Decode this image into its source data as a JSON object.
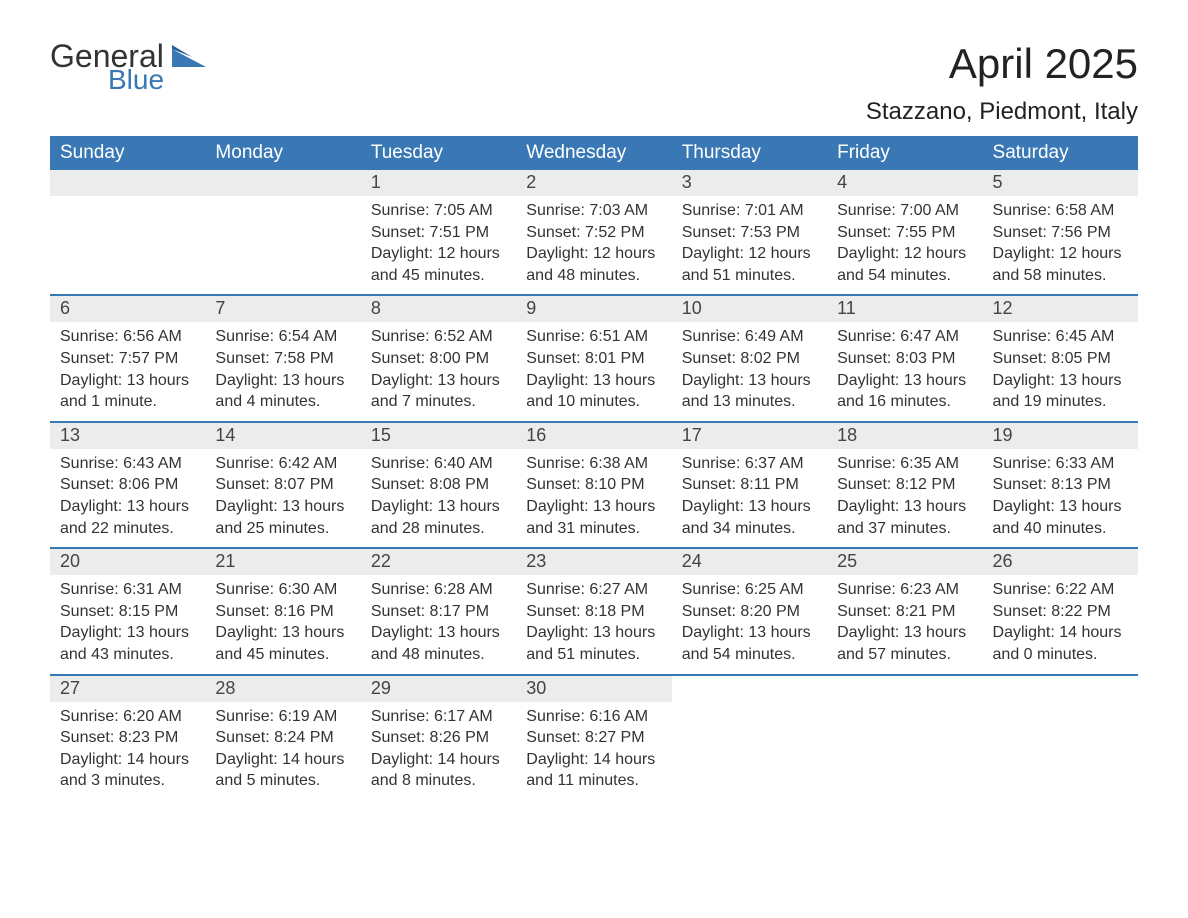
{
  "logo": {
    "word1": "General",
    "word2": "Blue"
  },
  "title": "April 2025",
  "location": "Stazzano, Piedmont, Italy",
  "colors": {
    "brand_blue": "#3a78b5",
    "header_bg": "#3a78b5",
    "header_text": "#ffffff",
    "daynum_bg": "#ececec",
    "text": "#333333",
    "background": "#ffffff"
  },
  "day_names": [
    "Sunday",
    "Monday",
    "Tuesday",
    "Wednesday",
    "Thursday",
    "Friday",
    "Saturday"
  ],
  "weeks": [
    [
      {
        "n": "",
        "sunrise": "",
        "sunset": "",
        "daylight1": "",
        "daylight2": ""
      },
      {
        "n": "",
        "sunrise": "",
        "sunset": "",
        "daylight1": "",
        "daylight2": ""
      },
      {
        "n": "1",
        "sunrise": "Sunrise: 7:05 AM",
        "sunset": "Sunset: 7:51 PM",
        "daylight1": "Daylight: 12 hours",
        "daylight2": "and 45 minutes."
      },
      {
        "n": "2",
        "sunrise": "Sunrise: 7:03 AM",
        "sunset": "Sunset: 7:52 PM",
        "daylight1": "Daylight: 12 hours",
        "daylight2": "and 48 minutes."
      },
      {
        "n": "3",
        "sunrise": "Sunrise: 7:01 AM",
        "sunset": "Sunset: 7:53 PM",
        "daylight1": "Daylight: 12 hours",
        "daylight2": "and 51 minutes."
      },
      {
        "n": "4",
        "sunrise": "Sunrise: 7:00 AM",
        "sunset": "Sunset: 7:55 PM",
        "daylight1": "Daylight: 12 hours",
        "daylight2": "and 54 minutes."
      },
      {
        "n": "5",
        "sunrise": "Sunrise: 6:58 AM",
        "sunset": "Sunset: 7:56 PM",
        "daylight1": "Daylight: 12 hours",
        "daylight2": "and 58 minutes."
      }
    ],
    [
      {
        "n": "6",
        "sunrise": "Sunrise: 6:56 AM",
        "sunset": "Sunset: 7:57 PM",
        "daylight1": "Daylight: 13 hours",
        "daylight2": "and 1 minute."
      },
      {
        "n": "7",
        "sunrise": "Sunrise: 6:54 AM",
        "sunset": "Sunset: 7:58 PM",
        "daylight1": "Daylight: 13 hours",
        "daylight2": "and 4 minutes."
      },
      {
        "n": "8",
        "sunrise": "Sunrise: 6:52 AM",
        "sunset": "Sunset: 8:00 PM",
        "daylight1": "Daylight: 13 hours",
        "daylight2": "and 7 minutes."
      },
      {
        "n": "9",
        "sunrise": "Sunrise: 6:51 AM",
        "sunset": "Sunset: 8:01 PM",
        "daylight1": "Daylight: 13 hours",
        "daylight2": "and 10 minutes."
      },
      {
        "n": "10",
        "sunrise": "Sunrise: 6:49 AM",
        "sunset": "Sunset: 8:02 PM",
        "daylight1": "Daylight: 13 hours",
        "daylight2": "and 13 minutes."
      },
      {
        "n": "11",
        "sunrise": "Sunrise: 6:47 AM",
        "sunset": "Sunset: 8:03 PM",
        "daylight1": "Daylight: 13 hours",
        "daylight2": "and 16 minutes."
      },
      {
        "n": "12",
        "sunrise": "Sunrise: 6:45 AM",
        "sunset": "Sunset: 8:05 PM",
        "daylight1": "Daylight: 13 hours",
        "daylight2": "and 19 minutes."
      }
    ],
    [
      {
        "n": "13",
        "sunrise": "Sunrise: 6:43 AM",
        "sunset": "Sunset: 8:06 PM",
        "daylight1": "Daylight: 13 hours",
        "daylight2": "and 22 minutes."
      },
      {
        "n": "14",
        "sunrise": "Sunrise: 6:42 AM",
        "sunset": "Sunset: 8:07 PM",
        "daylight1": "Daylight: 13 hours",
        "daylight2": "and 25 minutes."
      },
      {
        "n": "15",
        "sunrise": "Sunrise: 6:40 AM",
        "sunset": "Sunset: 8:08 PM",
        "daylight1": "Daylight: 13 hours",
        "daylight2": "and 28 minutes."
      },
      {
        "n": "16",
        "sunrise": "Sunrise: 6:38 AM",
        "sunset": "Sunset: 8:10 PM",
        "daylight1": "Daylight: 13 hours",
        "daylight2": "and 31 minutes."
      },
      {
        "n": "17",
        "sunrise": "Sunrise: 6:37 AM",
        "sunset": "Sunset: 8:11 PM",
        "daylight1": "Daylight: 13 hours",
        "daylight2": "and 34 minutes."
      },
      {
        "n": "18",
        "sunrise": "Sunrise: 6:35 AM",
        "sunset": "Sunset: 8:12 PM",
        "daylight1": "Daylight: 13 hours",
        "daylight2": "and 37 minutes."
      },
      {
        "n": "19",
        "sunrise": "Sunrise: 6:33 AM",
        "sunset": "Sunset: 8:13 PM",
        "daylight1": "Daylight: 13 hours",
        "daylight2": "and 40 minutes."
      }
    ],
    [
      {
        "n": "20",
        "sunrise": "Sunrise: 6:31 AM",
        "sunset": "Sunset: 8:15 PM",
        "daylight1": "Daylight: 13 hours",
        "daylight2": "and 43 minutes."
      },
      {
        "n": "21",
        "sunrise": "Sunrise: 6:30 AM",
        "sunset": "Sunset: 8:16 PM",
        "daylight1": "Daylight: 13 hours",
        "daylight2": "and 45 minutes."
      },
      {
        "n": "22",
        "sunrise": "Sunrise: 6:28 AM",
        "sunset": "Sunset: 8:17 PM",
        "daylight1": "Daylight: 13 hours",
        "daylight2": "and 48 minutes."
      },
      {
        "n": "23",
        "sunrise": "Sunrise: 6:27 AM",
        "sunset": "Sunset: 8:18 PM",
        "daylight1": "Daylight: 13 hours",
        "daylight2": "and 51 minutes."
      },
      {
        "n": "24",
        "sunrise": "Sunrise: 6:25 AM",
        "sunset": "Sunset: 8:20 PM",
        "daylight1": "Daylight: 13 hours",
        "daylight2": "and 54 minutes."
      },
      {
        "n": "25",
        "sunrise": "Sunrise: 6:23 AM",
        "sunset": "Sunset: 8:21 PM",
        "daylight1": "Daylight: 13 hours",
        "daylight2": "and 57 minutes."
      },
      {
        "n": "26",
        "sunrise": "Sunrise: 6:22 AM",
        "sunset": "Sunset: 8:22 PM",
        "daylight1": "Daylight: 14 hours",
        "daylight2": "and 0 minutes."
      }
    ],
    [
      {
        "n": "27",
        "sunrise": "Sunrise: 6:20 AM",
        "sunset": "Sunset: 8:23 PM",
        "daylight1": "Daylight: 14 hours",
        "daylight2": "and 3 minutes."
      },
      {
        "n": "28",
        "sunrise": "Sunrise: 6:19 AM",
        "sunset": "Sunset: 8:24 PM",
        "daylight1": "Daylight: 14 hours",
        "daylight2": "and 5 minutes."
      },
      {
        "n": "29",
        "sunrise": "Sunrise: 6:17 AM",
        "sunset": "Sunset: 8:26 PM",
        "daylight1": "Daylight: 14 hours",
        "daylight2": "and 8 minutes."
      },
      {
        "n": "30",
        "sunrise": "Sunrise: 6:16 AM",
        "sunset": "Sunset: 8:27 PM",
        "daylight1": "Daylight: 14 hours",
        "daylight2": "and 11 minutes."
      },
      {
        "n": "",
        "sunrise": "",
        "sunset": "",
        "daylight1": "",
        "daylight2": ""
      },
      {
        "n": "",
        "sunrise": "",
        "sunset": "",
        "daylight1": "",
        "daylight2": ""
      },
      {
        "n": "",
        "sunrise": "",
        "sunset": "",
        "daylight1": "",
        "daylight2": ""
      }
    ]
  ]
}
